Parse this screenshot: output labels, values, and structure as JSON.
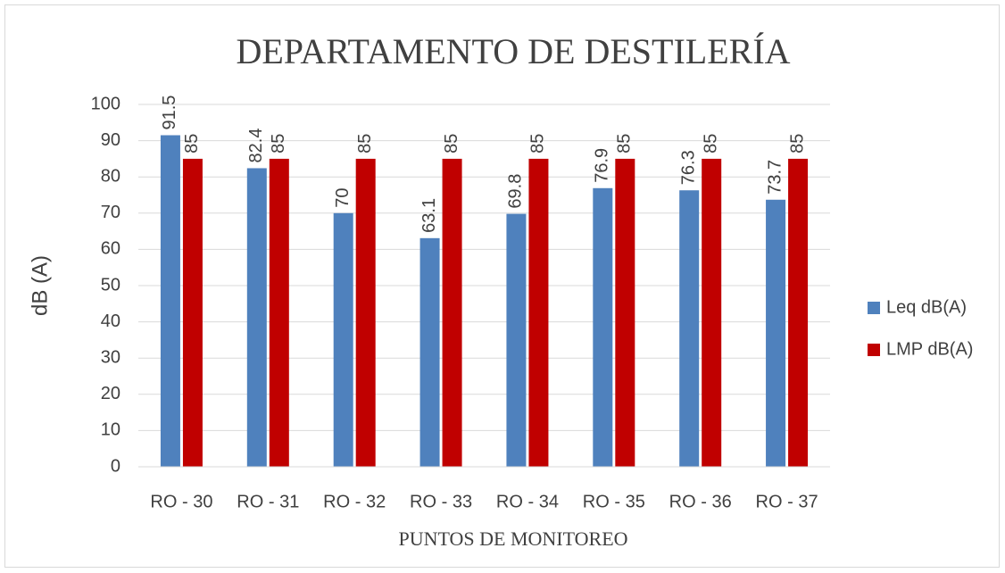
{
  "chart_data": {
    "type": "bar",
    "title": "DEPARTAMENTO DE DESTILERÍA",
    "x_label": "PUNTOS DE MONITOREO",
    "y_label": "dB (A)",
    "categories": [
      "RO - 30",
      "RO - 31",
      "RO - 32",
      "RO - 33",
      "RO - 34",
      "RO - 35",
      "RO - 36",
      "RO - 37"
    ],
    "series": [
      {
        "name": "Leq dB(A)",
        "color": "#4f81bd",
        "values": [
          91.5,
          82.4,
          70,
          63.1,
          69.8,
          76.9,
          76.3,
          73.7
        ]
      },
      {
        "name": "LMP dB(A)",
        "color": "#c00000",
        "values": [
          85,
          85,
          85,
          85,
          85,
          85,
          85,
          85
        ]
      }
    ],
    "ylim": [
      0,
      100
    ],
    "yticks": [
      0,
      10,
      20,
      30,
      40,
      50,
      60,
      70,
      80,
      90,
      100
    ],
    "grid": true,
    "legend": "right"
  }
}
